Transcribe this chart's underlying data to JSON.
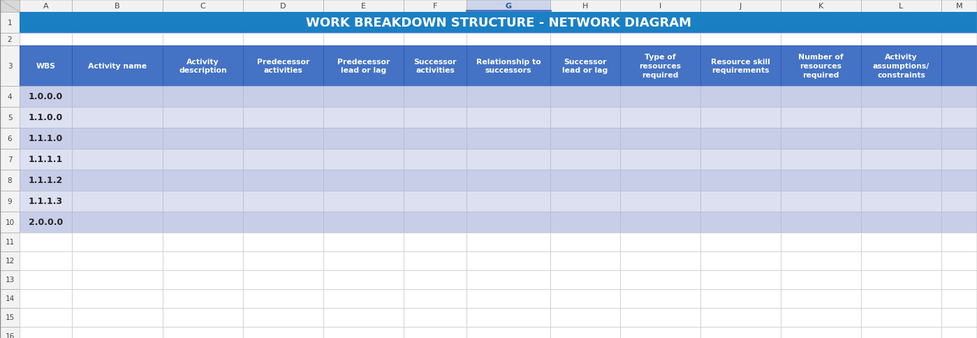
{
  "title": "WORK BREAKDOWN STRUCTURE - NETWORK DIAGRAM",
  "title_bg": "#1b7fc4",
  "title_text_color": "#ffffff",
  "header_bg": "#4472c4",
  "header_text_color": "#ffffff",
  "row_colors": [
    "#c8cee8",
    "#dde0f0"
  ],
  "empty_row_color": "#ffffff",
  "grid_color": "#b0b8cc",
  "row_label_color": "#444444",
  "col_letters": [
    "A",
    "B",
    "C",
    "D",
    "E",
    "F",
    "G",
    "H",
    "I",
    "J",
    "K",
    "L",
    "M"
  ],
  "row_numbers": [
    "1",
    "2",
    "3",
    "4",
    "5",
    "6",
    "7",
    "8",
    "9",
    "10",
    "11",
    "12",
    "13",
    "14",
    "15",
    "16"
  ],
  "headers": [
    "WBS",
    "Activity name",
    "Activity\ndescription",
    "Predecessor\nactivities",
    "Predecessor\nlead or lag",
    "Successor\nactivities",
    "Relationship to\nsuccessors",
    "Successor\nlead or lag",
    "Type of\nresources\nrequired",
    "Resource skill\nrequirements",
    "Number of\nresources\nrequired",
    "Activity\nassumptions/\nconstraints"
  ],
  "wbs_values": [
    "1.0.0.0",
    "1.1.0.0",
    "1.1.1.0",
    "1.1.1.1",
    "1.1.1.2",
    "1.1.1.3",
    "2.0.0.0"
  ],
  "fig_bg": "#e4e4e4",
  "col_header_bg": "#f2f2f2",
  "col_header_text": "#444444",
  "selected_col": "G",
  "selected_col_bg": "#cdd5e8",
  "corner_bg": "#d8d8d8",
  "row_num_bg": "#f2f2f2",
  "empty_data_row_color_1": "#dde0f0",
  "empty_data_row_color_2": "#eceef8"
}
